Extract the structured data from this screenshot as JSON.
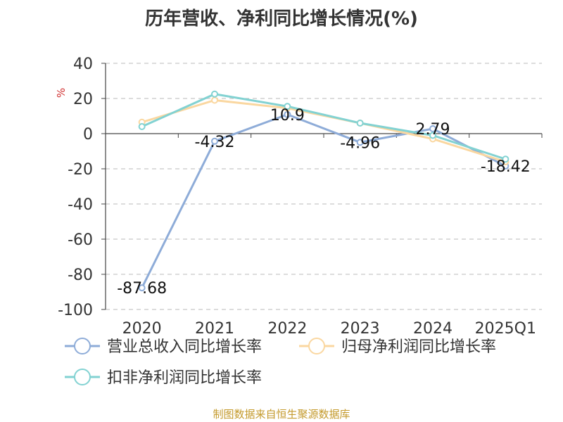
{
  "chart_data": {
    "type": "line",
    "title": "历年营收、净利同比增长情况(%)",
    "ylabel": "%",
    "xlabel": "",
    "categories": [
      "2020",
      "2021",
      "2022",
      "2023",
      "2024",
      "2025Q1"
    ],
    "ylim": [
      -100,
      40
    ],
    "yticks": [
      40,
      20,
      0,
      -20,
      -40,
      -60,
      -80,
      -100
    ],
    "grid": true,
    "legend_position": "bottom-left",
    "series": [
      {
        "name": "营业总收入同比增长率",
        "color": "#8eacd8",
        "values": [
          -87.68,
          -4.32,
          10.9,
          -4.96,
          2.79,
          -18.42
        ],
        "labels": [
          "-87.68",
          "-4.32",
          "10.9",
          "-4.96",
          "2.79",
          "-18.42"
        ]
      },
      {
        "name": "归母净利润同比增长率",
        "color": "#fad7a0",
        "values": [
          6.5,
          19.0,
          14.5,
          6.0,
          -3.0,
          -16.0
        ]
      },
      {
        "name": "扣非净利润同比增长率",
        "color": "#82d2d2",
        "values": [
          4.0,
          22.5,
          15.5,
          6.0,
          -1.0,
          -14.5
        ]
      }
    ]
  },
  "source_note": "制图数据来自恒生聚源数据库"
}
